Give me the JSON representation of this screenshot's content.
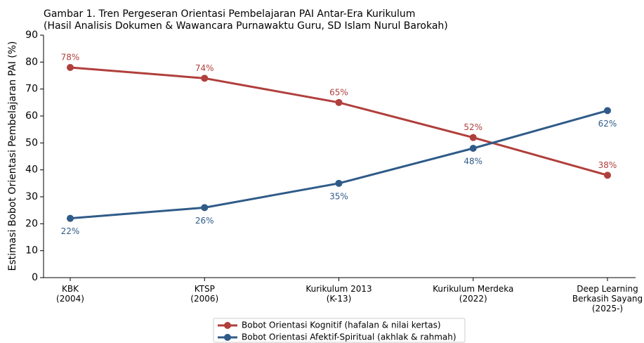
{
  "chart_data": {
    "type": "line",
    "title": "Gambar 1. Tren Pergeseran Orientasi Pembelajaran PAI Antar-Era Kurikulum",
    "subtitle": "(Hasil Analisis Dokumen & Wawancara Purnawaktu Guru, SD Islam Nurul Barokah)",
    "y_label": "Estimasi Bobot Orientasi Pembelajaran PAI (%)",
    "categories": [
      "KBK\n(2004)",
      "KTSP\n(2006)",
      "Kurikulum 2013\n(K-13)",
      "Kurikulum Merdeka\n(2022)",
      "Deep Learning\nBerkasih Sayang\n(2025-)"
    ],
    "series": [
      {
        "name": "Bobot Orientasi Kognitif (hafalan & nilai kertas)",
        "color": "#b03f3c",
        "values": [
          78,
          74,
          65,
          52,
          38
        ],
        "value_labels": [
          "78%",
          "74%",
          "65%",
          "52%",
          "38%"
        ]
      },
      {
        "name": "Bobot Orientasi Afektif-Spiritual (akhlak & rahmah)",
        "color": "#2f5b88",
        "values": [
          22,
          26,
          35,
          48,
          62
        ],
        "value_labels": [
          "22%",
          "26%",
          "35%",
          "48%",
          "62%"
        ]
      }
    ],
    "ylim": [
      0,
      90
    ],
    "yticks": [
      0,
      10,
      20,
      30,
      40,
      50,
      60,
      70,
      80,
      90
    ],
    "legend": "lower center",
    "grid": false
  }
}
